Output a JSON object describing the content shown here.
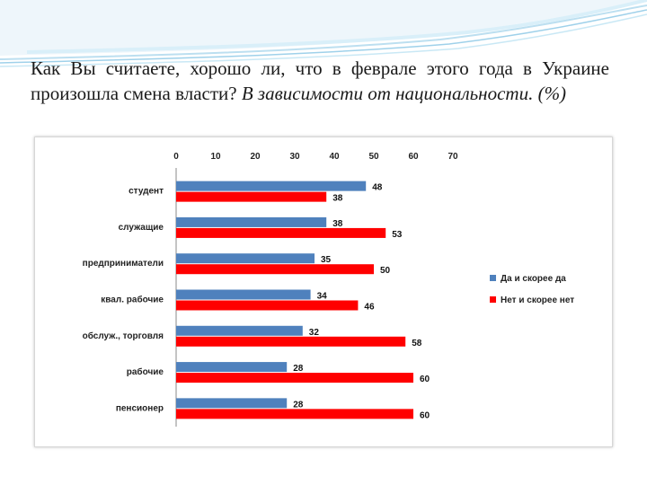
{
  "heading": {
    "plain": "Как Вы считаете, хорошо ли, что в феврале этого года в Украине произошла смена власти?",
    "italic": "В зависимости от национальности. (%)"
  },
  "chart_data": {
    "type": "bar",
    "orientation": "horizontal",
    "categories": [
      "студент",
      "служащие",
      "предприниматели",
      "квал. рабочие",
      "обслуж., торговля",
      "рабочие",
      "пенсионер"
    ],
    "series": [
      {
        "name": "Да и скорее да",
        "color": "#4f81bd",
        "values": [
          48,
          38,
          35,
          34,
          32,
          28,
          28
        ]
      },
      {
        "name": "Нет и скорее нет",
        "color": "#ff0000",
        "values": [
          38,
          53,
          50,
          46,
          58,
          60,
          60
        ]
      }
    ],
    "xlim": [
      0,
      70
    ],
    "xticks": [
      "0",
      "10",
      "20",
      "30",
      "40",
      "50",
      "60",
      "70"
    ],
    "x_axis_position": "top",
    "grid": false,
    "legend": "right"
  }
}
